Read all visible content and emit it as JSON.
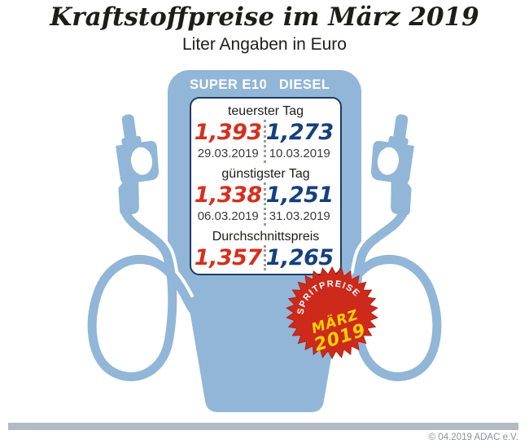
{
  "header": {
    "title": "Kraftstoffpreise im März 2019",
    "subtitle": "Liter Angaben in Euro"
  },
  "pump": {
    "columns": [
      "SUPER E10",
      "DIESEL"
    ],
    "sections": [
      {
        "label": "teuerster Tag",
        "values": [
          {
            "fuel": "SUPER E10",
            "price": "1,393",
            "date": "29.03.2019"
          },
          {
            "fuel": "DIESEL",
            "price": "1,273",
            "date": "10.03.2019"
          }
        ]
      },
      {
        "label": "günstigster Tag",
        "values": [
          {
            "fuel": "SUPER E10",
            "price": "1,338",
            "date": "06.03.2019"
          },
          {
            "fuel": "DIESEL",
            "price": "1,251",
            "date": "31.03.2019"
          }
        ]
      },
      {
        "label": "Durchschnittspreis",
        "values": [
          {
            "fuel": "SUPER E10",
            "price": "1,357"
          },
          {
            "fuel": "DIESEL",
            "price": "1,265"
          }
        ]
      }
    ]
  },
  "badge": {
    "arc_text": "SPRITPREISE",
    "month": "MÄRZ",
    "year": "2019"
  },
  "footer": {
    "copyright": "© 04.2019 ADAC e.V."
  },
  "colors": {
    "pump_blue": "#91b6d8",
    "super_e10_red": "#d5301d",
    "diesel_navy": "#15407c",
    "badge_red": "#ce2a1c",
    "badge_yellow": "#ffd400",
    "footer_gray": "#b2bbc1"
  },
  "chart_data": {
    "type": "table",
    "title": "Kraftstoffpreise im März 2019",
    "subtitle": "Liter Angaben in Euro",
    "unit": "Euro pro Liter",
    "columns": [
      "SUPER E10",
      "DIESEL"
    ],
    "rows": [
      {
        "label": "teuerster Tag",
        "SUPER_E10": {
          "price": 1.393,
          "date": "29.03.2019"
        },
        "DIESEL": {
          "price": 1.273,
          "date": "10.03.2019"
        }
      },
      {
        "label": "günstigster Tag",
        "SUPER_E10": {
          "price": 1.338,
          "date": "06.03.2019"
        },
        "DIESEL": {
          "price": 1.251,
          "date": "31.03.2019"
        }
      },
      {
        "label": "Durchschnittspreis",
        "SUPER_E10": {
          "price": 1.357
        },
        "DIESEL": {
          "price": 1.265
        }
      }
    ]
  }
}
